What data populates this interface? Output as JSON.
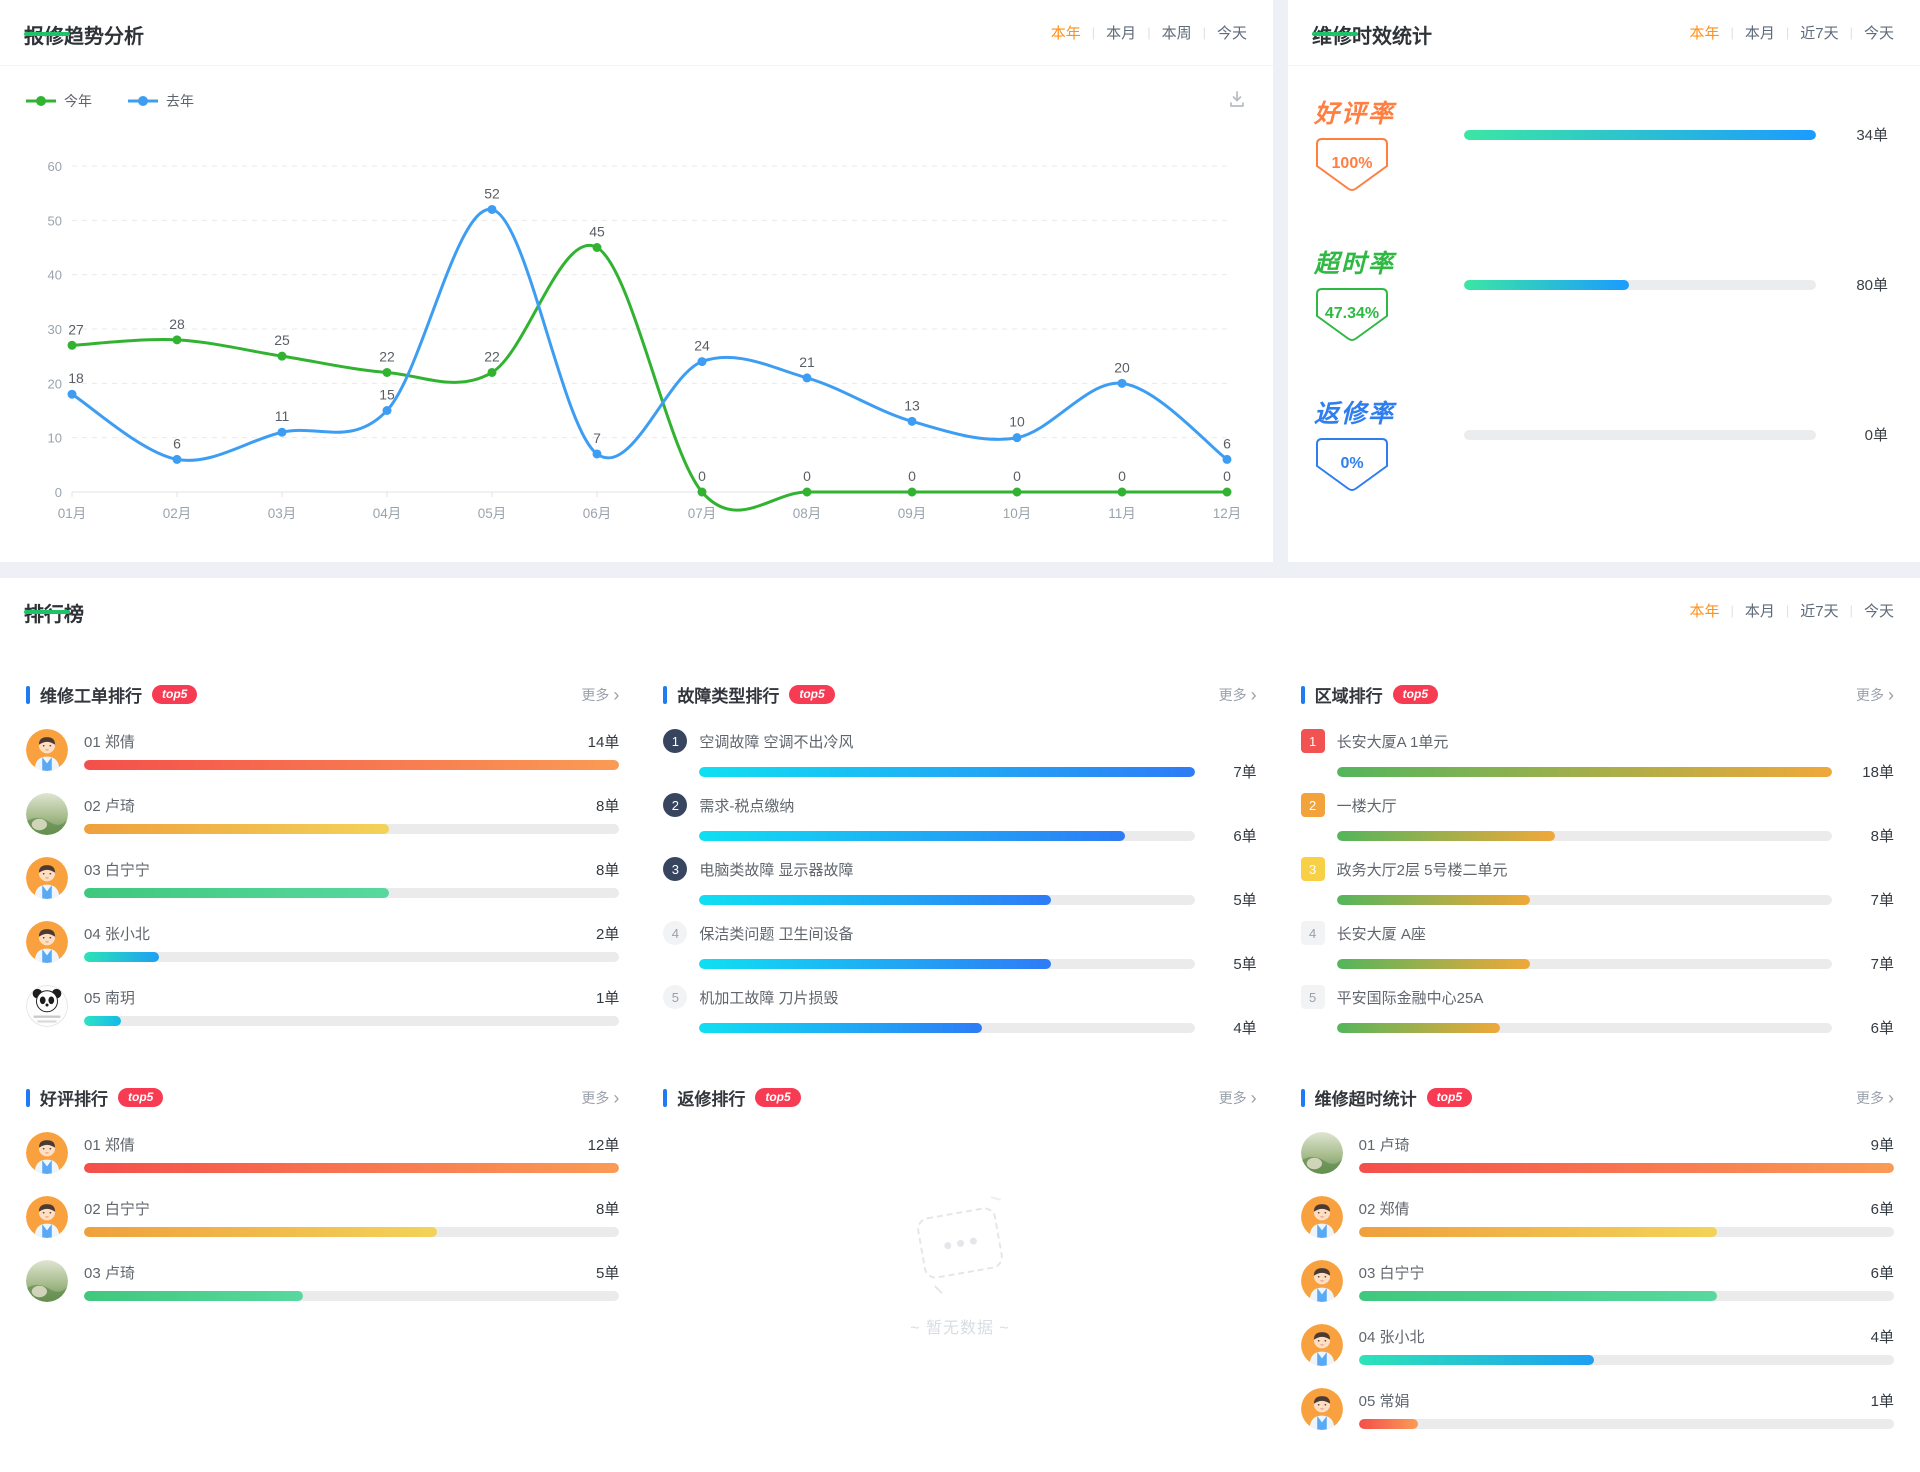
{
  "trend_panel": {
    "title": "报修趋势分析",
    "filters": [
      "本年",
      "本月",
      "本周",
      "今天"
    ],
    "active_filter": "本年",
    "download_icon": "download-icon"
  },
  "chart_data": {
    "type": "line",
    "title": "报修趋势分析",
    "categories": [
      "01月",
      "02月",
      "03月",
      "04月",
      "05月",
      "06月",
      "07月",
      "08月",
      "09月",
      "10月",
      "11月",
      "12月"
    ],
    "series": [
      {
        "name": "今年",
        "color": "#31b331",
        "values": [
          27,
          28,
          25,
          22,
          22,
          45,
          0,
          0,
          0,
          0,
          0,
          0
        ]
      },
      {
        "name": "去年",
        "color": "#3d9df3",
        "values": [
          18,
          6,
          11,
          15,
          52,
          7,
          24,
          21,
          13,
          10,
          20,
          6
        ]
      }
    ],
    "ylim": [
      0,
      60
    ],
    "yticks": [
      0,
      10,
      20,
      30,
      40,
      50,
      60
    ],
    "grid": "dashed-horizontal",
    "legend_position": "top-left",
    "smooth": true
  },
  "stats_panel": {
    "title": "维修时效统计",
    "filters": [
      "本年",
      "本月",
      "近7天",
      "今天"
    ],
    "active_filter": "本年",
    "bar_gradient": [
      "#3be6a3",
      "#1b9bff"
    ],
    "stats": [
      {
        "label": "好评率",
        "percent": "100%",
        "count": "34单",
        "fill_pct": 100,
        "color": "#ff7e41"
      },
      {
        "label": "超时率",
        "percent": "47.34%",
        "count": "80单",
        "fill_pct": 47,
        "color": "#2fb944"
      },
      {
        "label": "返修率",
        "percent": "0%",
        "count": "0单",
        "fill_pct": 0,
        "color": "#2f7ef0"
      }
    ]
  },
  "rankings": {
    "title": "排行榜",
    "filters": [
      "本年",
      "本月",
      "近7天",
      "今天"
    ],
    "active_filter": "本年",
    "more_label": "更多",
    "top_badge": "top5",
    "accent_color": "#1f7bf4",
    "panels": [
      {
        "title": "维修工单排行",
        "type": "avatar",
        "items": [
          {
            "rank": "01",
            "name": "郑倩",
            "count": "14单",
            "pct": 100,
            "avatar": "person",
            "bar": "red"
          },
          {
            "rank": "02",
            "name": "卢琦",
            "count": "8单",
            "pct": 57,
            "avatar": "photo",
            "bar": "orange"
          },
          {
            "rank": "03",
            "name": "白宁宁",
            "count": "8单",
            "pct": 57,
            "avatar": "person",
            "bar": "green"
          },
          {
            "rank": "04",
            "name": "张小北",
            "count": "2单",
            "pct": 14,
            "avatar": "person",
            "bar": "teal"
          },
          {
            "rank": "05",
            "name": "南玥",
            "count": "1单",
            "pct": 7,
            "avatar": "panda",
            "bar": "cyan"
          }
        ]
      },
      {
        "title": "故障类型排行",
        "type": "badge-circle",
        "bar": "fault",
        "items": [
          {
            "rank": "1",
            "name": "空调故障 空调不出冷风",
            "count": "7单",
            "pct": 100,
            "badge": "dark"
          },
          {
            "rank": "2",
            "name": "需求-税点缴纳",
            "count": "6单",
            "pct": 86,
            "badge": "dark"
          },
          {
            "rank": "3",
            "name": "电脑类故障 显示器故障",
            "count": "5单",
            "pct": 71,
            "badge": "dark"
          },
          {
            "rank": "4",
            "name": "保洁类问题 卫生间设备",
            "count": "5单",
            "pct": 71,
            "badge": "light"
          },
          {
            "rank": "5",
            "name": "机加工故障 刀片损毁",
            "count": "4单",
            "pct": 57,
            "badge": "light"
          }
        ]
      },
      {
        "title": "区域排行",
        "type": "badge-square",
        "bar": "region",
        "items": [
          {
            "rank": "1",
            "name": "长安大厦A 1单元",
            "count": "18单",
            "pct": 100,
            "badge": "red"
          },
          {
            "rank": "2",
            "name": "一楼大厅",
            "count": "8单",
            "pct": 44,
            "badge": "orange"
          },
          {
            "rank": "3",
            "name": "政务大厅2层 5号楼二单元",
            "count": "7单",
            "pct": 39,
            "badge": "yellow"
          },
          {
            "rank": "4",
            "name": "长安大厦 A座",
            "count": "7单",
            "pct": 39,
            "badge": "light"
          },
          {
            "rank": "5",
            "name": "平安国际金融中心25A",
            "count": "6单",
            "pct": 33,
            "badge": "light"
          }
        ]
      },
      {
        "title": "好评排行",
        "type": "avatar",
        "items": [
          {
            "rank": "01",
            "name": "郑倩",
            "count": "12单",
            "pct": 100,
            "avatar": "person",
            "bar": "red"
          },
          {
            "rank": "02",
            "name": "白宁宁",
            "count": "8单",
            "pct": 66,
            "avatar": "person",
            "bar": "orange"
          },
          {
            "rank": "03",
            "name": "卢琦",
            "count": "5单",
            "pct": 41,
            "avatar": "photo",
            "bar": "green"
          }
        ]
      },
      {
        "title": "返修排行",
        "type": "empty",
        "empty_text": "~ 暂无数据 ~"
      },
      {
        "title": "维修超时统计",
        "type": "avatar",
        "items": [
          {
            "rank": "01",
            "name": "卢琦",
            "count": "9单",
            "pct": 100,
            "avatar": "photo",
            "bar": "red"
          },
          {
            "rank": "02",
            "name": "郑倩",
            "count": "6单",
            "pct": 67,
            "avatar": "person",
            "bar": "orange"
          },
          {
            "rank": "03",
            "name": "白宁宁",
            "count": "6单",
            "pct": 67,
            "avatar": "person",
            "bar": "green"
          },
          {
            "rank": "04",
            "name": "张小北",
            "count": "4单",
            "pct": 44,
            "avatar": "person",
            "bar": "teal"
          },
          {
            "rank": "05",
            "name": "常娟",
            "count": "1单",
            "pct": 11,
            "avatar": "person",
            "bar": "red"
          }
        ]
      }
    ]
  }
}
